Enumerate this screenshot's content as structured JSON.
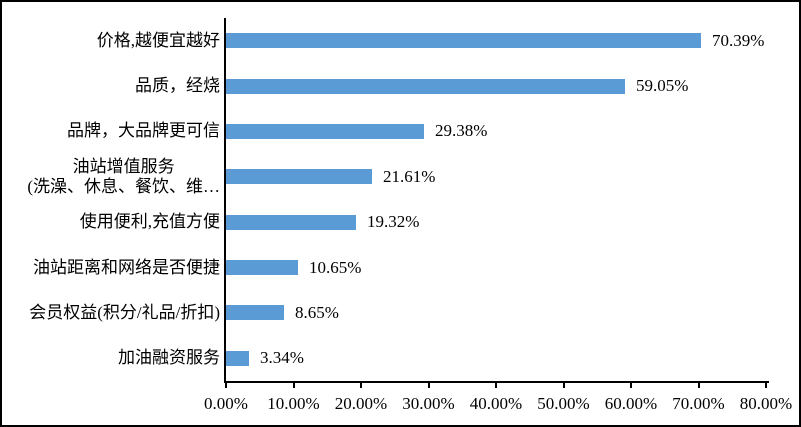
{
  "chart_data": {
    "type": "bar",
    "orientation": "horizontal",
    "title": "",
    "xlabel": "",
    "ylabel": "",
    "categories": [
      "价格,越便宜越好",
      "品质，经烧",
      "品牌，大品牌更可信",
      "油站增值服务\n(洗澡、休息、餐饮、维…",
      "使用便利,充值方便",
      "油站距离和网络是否便捷",
      "会员权益(积分/礼品/折扣)",
      "加油融资服务"
    ],
    "values": [
      70.39,
      59.05,
      29.38,
      21.61,
      19.32,
      10.65,
      8.65,
      3.34
    ],
    "value_labels": [
      "70.39%",
      "59.05%",
      "29.38%",
      "21.61%",
      "19.32%",
      "10.65%",
      "8.65%",
      "3.34%"
    ],
    "xlim": [
      0,
      80
    ],
    "x_ticks": [
      "0.00%",
      "10.00%",
      "20.00%",
      "30.00%",
      "40.00%",
      "50.00%",
      "60.00%",
      "70.00%",
      "80.00%"
    ],
    "x_tick_values": [
      0,
      10,
      20,
      30,
      40,
      50,
      60,
      70,
      80
    ],
    "grid": false,
    "legend": false
  },
  "colors": {
    "bar": "#5B9BD5",
    "axis": "#000000",
    "text": "#000000",
    "background": "#FFFFFF",
    "figure_border": "#000000"
  }
}
